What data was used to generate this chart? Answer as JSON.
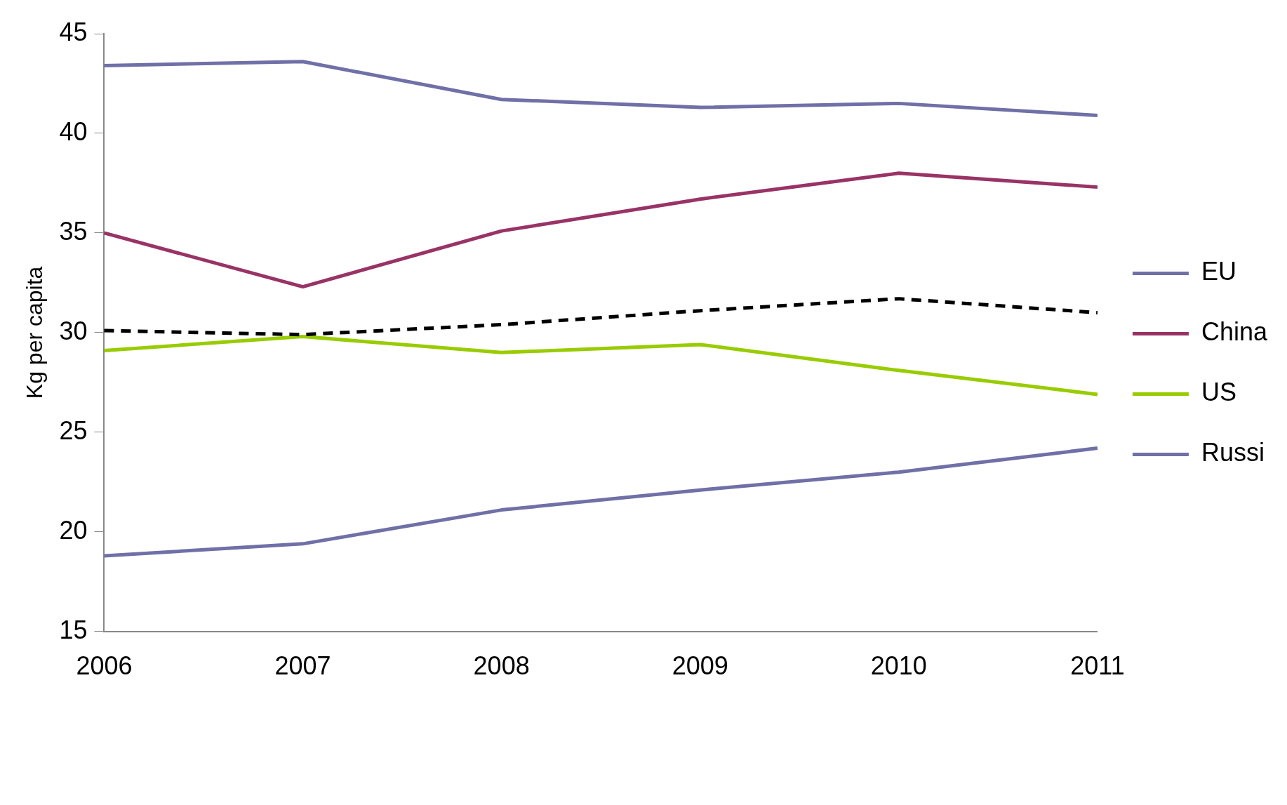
{
  "chart_data": {
    "type": "line",
    "ylabel": "Kg per capita",
    "categories": [
      "2006",
      "2007",
      "2008",
      "2009",
      "2010",
      "2011"
    ],
    "series": [
      {
        "name": "EU",
        "color": "#7070a8",
        "values": [
          43.4,
          43.6,
          41.7,
          41.3,
          41.5,
          40.9
        ]
      },
      {
        "name": "China",
        "color": "#993366",
        "values": [
          35.0,
          32.3,
          35.1,
          36.7,
          38.0,
          37.3
        ]
      },
      {
        "color": "#000000",
        "line_style": "dashed",
        "values": [
          30.1,
          29.9,
          30.4,
          31.1,
          31.7,
          31.0
        ]
      },
      {
        "name": "US",
        "color": "#99cc00",
        "values": [
          29.1,
          29.8,
          29.0,
          29.4,
          28.1,
          26.9
        ]
      },
      {
        "name": "Russi",
        "color": "#7070a8",
        "values": [
          18.8,
          19.4,
          21.1,
          22.1,
          23.0,
          24.2
        ]
      }
    ],
    "ylim": [
      15,
      45
    ],
    "yticks": [
      15,
      20,
      25,
      30,
      35,
      40,
      45
    ],
    "grid": false,
    "legend": "right",
    "marker": "none",
    "line_style": "solid"
  }
}
